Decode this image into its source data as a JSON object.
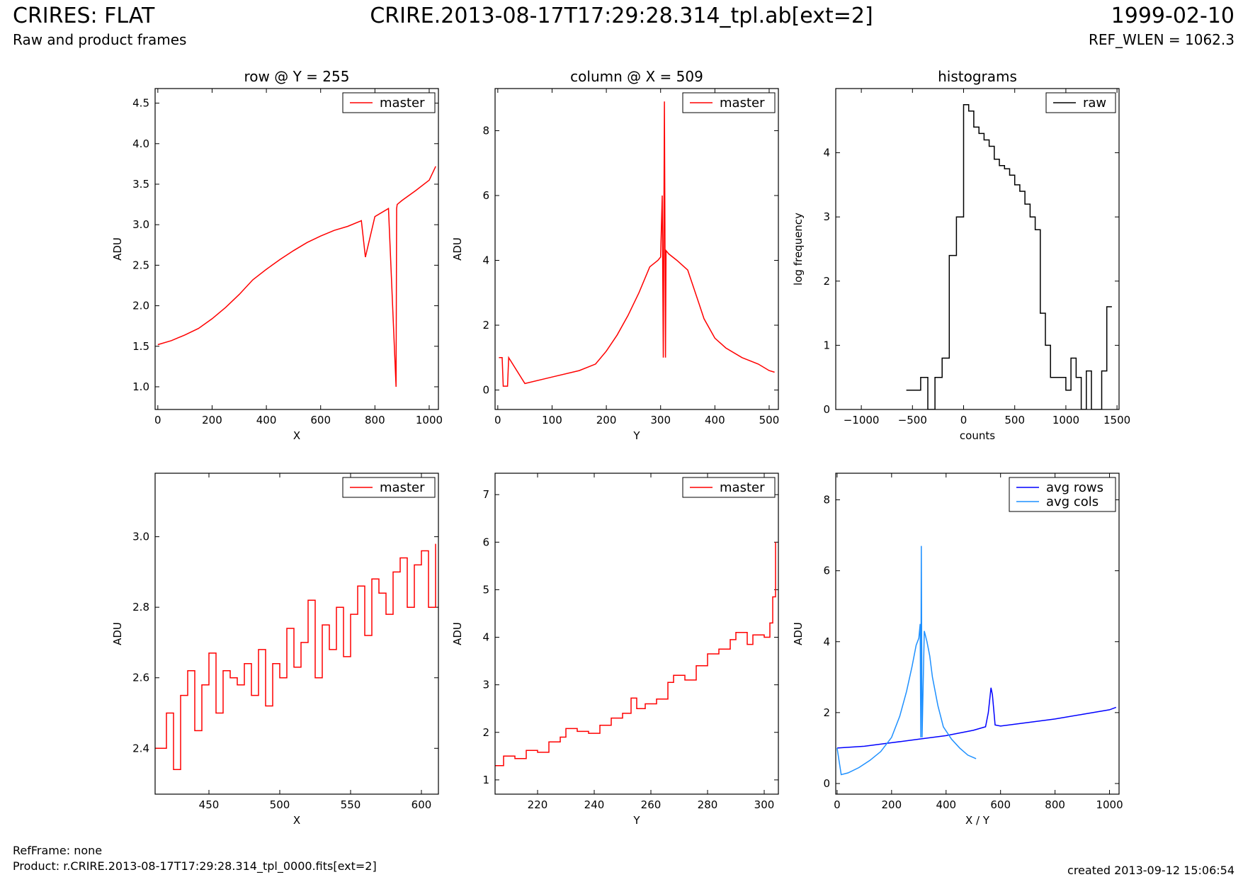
{
  "header": {
    "title": "CRIRES: FLAT",
    "subtitle": "Raw and product frames",
    "file": "CRIRE.2013-08-17T17:29:28.314_tpl.ab[ext=2]",
    "date": "1999-02-10",
    "ref_wlen": "REF_WLEN = 1062.3"
  },
  "footer": {
    "ref_frame": "RefFrame: none",
    "product": "Product: r.CRIRE.2013-08-17T17:29:28.314_tpl_0000.fits[ext=2]",
    "created": "created 2013-09-12 15:06:54"
  },
  "colors": {
    "red": "#ff0000",
    "black": "#000000",
    "blue": "#0000ff",
    "light_blue": "#1e90ff"
  },
  "chart_data": [
    {
      "id": "row",
      "type": "line",
      "title": "row @ Y = 255",
      "xlabel": "X",
      "ylabel": "ADU",
      "xlim": [
        -10,
        1034
      ],
      "ylim": [
        0.72,
        4.68
      ],
      "xticks": [
        0,
        200,
        400,
        600,
        800,
        1000
      ],
      "yticks": [
        1.0,
        1.5,
        2.0,
        2.5,
        3.0,
        3.5,
        4.0,
        4.5
      ],
      "legend": "upper right",
      "series": [
        {
          "name": "master",
          "color": "red",
          "x": [
            0,
            50,
            100,
            150,
            200,
            250,
            300,
            350,
            400,
            450,
            500,
            550,
            600,
            650,
            700,
            750,
            765,
            800,
            850,
            878,
            880,
            882,
            900,
            950,
            1000,
            1024
          ],
          "y": [
            1.52,
            1.57,
            1.64,
            1.72,
            1.84,
            1.98,
            2.14,
            2.32,
            2.45,
            2.57,
            2.68,
            2.78,
            2.86,
            2.93,
            2.98,
            3.05,
            2.6,
            3.1,
            3.2,
            1.0,
            3.2,
            3.25,
            3.3,
            3.42,
            3.55,
            3.72
          ]
        }
      ]
    },
    {
      "id": "column",
      "type": "line",
      "title": "column @ X = 509",
      "xlabel": "Y",
      "ylabel": "ADU",
      "xlim": [
        -5,
        517
      ],
      "ylim": [
        -0.6,
        9.3
      ],
      "xticks": [
        0,
        100,
        200,
        300,
        400,
        500
      ],
      "yticks": [
        0,
        2,
        4,
        6,
        8
      ],
      "legend": "upper right",
      "series": [
        {
          "name": "master",
          "color": "red",
          "x": [
            2,
            8,
            10,
            18,
            20,
            50,
            100,
            150,
            180,
            200,
            220,
            240,
            260,
            280,
            295,
            300,
            303,
            305,
            307,
            309,
            310,
            315,
            330,
            350,
            360,
            370,
            380,
            400,
            420,
            450,
            480,
            500,
            510
          ],
          "y": [
            1.0,
            1.0,
            0.12,
            0.12,
            1.0,
            0.2,
            0.4,
            0.6,
            0.8,
            1.2,
            1.7,
            2.3,
            3.0,
            3.8,
            4.0,
            4.1,
            6.0,
            1.0,
            8.9,
            1.0,
            4.3,
            4.2,
            4.0,
            3.7,
            3.2,
            2.7,
            2.2,
            1.6,
            1.3,
            1.0,
            0.8,
            0.6,
            0.55
          ]
        }
      ]
    },
    {
      "id": "histograms",
      "type": "line",
      "step": true,
      "title": "histograms",
      "xlabel": "counts",
      "ylabel": "log frequency",
      "xlim": [
        -1250,
        1520
      ],
      "ylim": [
        0,
        5
      ],
      "xticks": [
        -1000,
        -500,
        0,
        500,
        1000,
        1500
      ],
      "yticks": [
        0,
        1,
        2,
        3,
        4
      ],
      "legend": "upper right",
      "series": [
        {
          "name": "raw",
          "color": "black",
          "x": [
            -560,
            -420,
            -350,
            -280,
            -210,
            -140,
            -70,
            0,
            50,
            100,
            150,
            200,
            250,
            300,
            350,
            400,
            450,
            500,
            550,
            600,
            650,
            700,
            750,
            800,
            850,
            900,
            1000,
            1050,
            1100,
            1150,
            1200,
            1250,
            1300,
            1350,
            1400,
            1450
          ],
          "y": [
            0.3,
            0.5,
            0.0,
            0.5,
            0.8,
            2.4,
            3.0,
            4.75,
            4.65,
            4.4,
            4.3,
            4.2,
            4.1,
            3.9,
            3.8,
            3.75,
            3.65,
            3.5,
            3.4,
            3.2,
            3.0,
            2.8,
            1.5,
            1.0,
            0.5,
            0.5,
            0.3,
            0.8,
            0.5,
            0.0,
            0.6,
            0.0,
            0.0,
            0.6,
            1.6,
            1.6
          ]
        }
      ]
    },
    {
      "id": "row-zoom",
      "type": "line",
      "step": true,
      "xlabel": "X",
      "ylabel": "ADU",
      "xlim": [
        412,
        612
      ],
      "ylim": [
        2.27,
        3.18
      ],
      "xticks": [
        450,
        500,
        550,
        600
      ],
      "yticks": [
        2.4,
        2.6,
        2.8,
        3.0
      ],
      "legend": "upper right",
      "series": [
        {
          "name": "master",
          "color": "red",
          "x": [
            412,
            420,
            425,
            430,
            435,
            440,
            445,
            450,
            455,
            460,
            465,
            470,
            475,
            480,
            485,
            490,
            495,
            500,
            505,
            510,
            515,
            520,
            525,
            530,
            535,
            540,
            545,
            550,
            555,
            560,
            565,
            570,
            575,
            580,
            585,
            590,
            595,
            600,
            605,
            610
          ],
          "y": [
            2.4,
            2.5,
            2.34,
            2.55,
            2.62,
            2.45,
            2.58,
            2.67,
            2.5,
            2.62,
            2.6,
            2.58,
            2.64,
            2.55,
            2.68,
            2.52,
            2.64,
            2.6,
            2.74,
            2.63,
            2.7,
            2.82,
            2.6,
            2.75,
            2.68,
            2.8,
            2.66,
            2.78,
            2.86,
            2.72,
            2.88,
            2.84,
            2.78,
            2.9,
            2.94,
            2.8,
            2.92,
            2.96,
            2.8,
            2.98
          ]
        }
      ]
    },
    {
      "id": "column-zoom",
      "type": "line",
      "step": true,
      "xlabel": "Y",
      "ylabel": "ADU",
      "xlim": [
        205,
        305
      ],
      "ylim": [
        0.7,
        7.45
      ],
      "xticks": [
        220,
        240,
        260,
        280,
        300
      ],
      "yticks": [
        1,
        2,
        3,
        4,
        5,
        6,
        7
      ],
      "legend": "upper right",
      "series": [
        {
          "name": "master",
          "color": "red",
          "x": [
            205,
            208,
            212,
            216,
            220,
            224,
            228,
            230,
            234,
            238,
            242,
            246,
            250,
            253,
            255,
            258,
            262,
            266,
            268,
            272,
            276,
            280,
            284,
            288,
            290,
            294,
            296,
            300,
            302,
            303,
            304
          ],
          "y": [
            1.3,
            1.5,
            1.45,
            1.62,
            1.58,
            1.8,
            1.9,
            2.08,
            2.02,
            1.98,
            2.15,
            2.3,
            2.4,
            2.72,
            2.5,
            2.6,
            2.7,
            3.05,
            3.2,
            3.1,
            3.4,
            3.65,
            3.75,
            3.95,
            4.1,
            3.85,
            4.05,
            4.0,
            4.3,
            4.85,
            6.0
          ]
        }
      ]
    },
    {
      "id": "averages",
      "type": "line",
      "xlabel": "X / Y",
      "ylabel": "ADU",
      "xlim": [
        -5,
        1035
      ],
      "ylim": [
        -0.3,
        8.75
      ],
      "xticks": [
        0,
        200,
        400,
        600,
        800,
        1000
      ],
      "yticks": [
        0,
        2,
        4,
        6,
        8
      ],
      "legend": "upper right",
      "series": [
        {
          "name": "avg rows",
          "color": "blue",
          "x": [
            0,
            100,
            200,
            300,
            400,
            500,
            545,
            555,
            565,
            570,
            580,
            600,
            700,
            800,
            900,
            1000,
            1024
          ],
          "y": [
            1.0,
            1.05,
            1.15,
            1.25,
            1.35,
            1.5,
            1.6,
            2.0,
            2.7,
            2.5,
            1.65,
            1.62,
            1.72,
            1.82,
            1.95,
            2.08,
            2.15
          ]
        },
        {
          "name": "avg cols",
          "color": "light_blue",
          "x": [
            0,
            15,
            40,
            80,
            120,
            160,
            200,
            230,
            255,
            275,
            290,
            300,
            305,
            307,
            309,
            312,
            320,
            330,
            340,
            350,
            370,
            390,
            420,
            450,
            480,
            510
          ],
          "y": [
            1.0,
            0.25,
            0.3,
            0.45,
            0.65,
            0.9,
            1.3,
            1.9,
            2.6,
            3.3,
            3.9,
            4.1,
            4.5,
            1.3,
            6.7,
            1.3,
            4.3,
            4.0,
            3.6,
            3.0,
            2.2,
            1.6,
            1.25,
            1.0,
            0.8,
            0.7
          ]
        }
      ]
    }
  ]
}
